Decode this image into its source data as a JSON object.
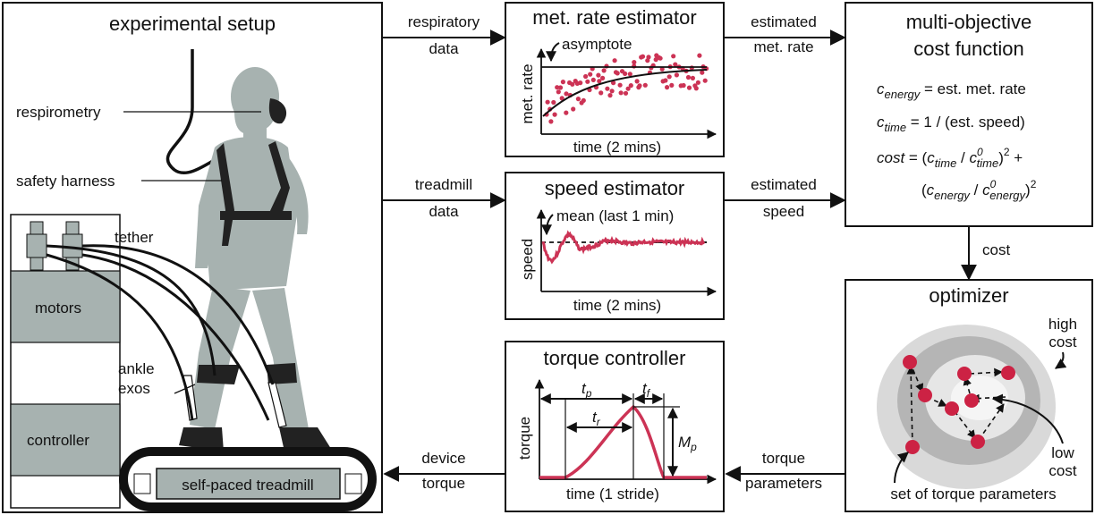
{
  "setup": {
    "title": "experimental setup",
    "labels": {
      "respirometry": "respirometry",
      "safety_harness": "safety harness",
      "tether": "tether",
      "motors": "motors",
      "ankle": "ankle",
      "exos": "exos",
      "controller": "controller",
      "treadmill": "self-paced treadmill"
    }
  },
  "arrows": {
    "respiratory_1": "respiratory",
    "respiratory_2": "data",
    "treadmill_1": "treadmill",
    "treadmill_2": "data",
    "device_1": "device",
    "device_2": "torque",
    "est_met_1": "estimated",
    "est_met_2": "met. rate",
    "est_speed_1": "estimated",
    "est_speed_2": "speed",
    "cost": "cost",
    "torque_params_1": "torque",
    "torque_params_2": "parameters"
  },
  "met_estimator": {
    "title": "met. rate estimator",
    "annotation": "asymptote",
    "ylabel": "met. rate",
    "xlabel": "time (2 mins)"
  },
  "speed_estimator": {
    "title": "speed estimator",
    "annotation": "mean (last 1 min)",
    "ylabel": "speed",
    "xlabel": "time (2 mins)"
  },
  "torque_controller": {
    "title": "torque controller",
    "ylabel": "torque",
    "xlabel": "time (1 stride)",
    "tp": "t",
    "tp_sub": "p",
    "tf": "t",
    "tf_sub": "f",
    "tr": "t",
    "tr_sub": "r",
    "mp": "M",
    "mp_sub": "p"
  },
  "cost_function": {
    "title_1": "multi-objective",
    "title_2": "cost function",
    "c": "c",
    "energy": "energy",
    "time": "time",
    "eq1_rhs": " = est. met. rate",
    "eq2_rhs": " = 1 / (est. speed)",
    "cost": "cost",
    "eq3_a": " = (",
    "slash": " / ",
    "zero": "0",
    "close_sq": ")",
    "two": "2",
    "plus": " +",
    "open": "(",
    "close_sq2": ")"
  },
  "optimizer": {
    "title": "optimizer",
    "high_1": "high",
    "high_2": "cost",
    "low_1": "low",
    "low_2": "cost",
    "set": "set of torque parameters"
  },
  "colors": {
    "accent": "#cc3355",
    "gray": "#a7b2b0",
    "ring1": "#d9d9d9",
    "ring2": "#b5b5b5",
    "ring3": "#e6e6e6",
    "ring4": "#f5f5f5"
  }
}
